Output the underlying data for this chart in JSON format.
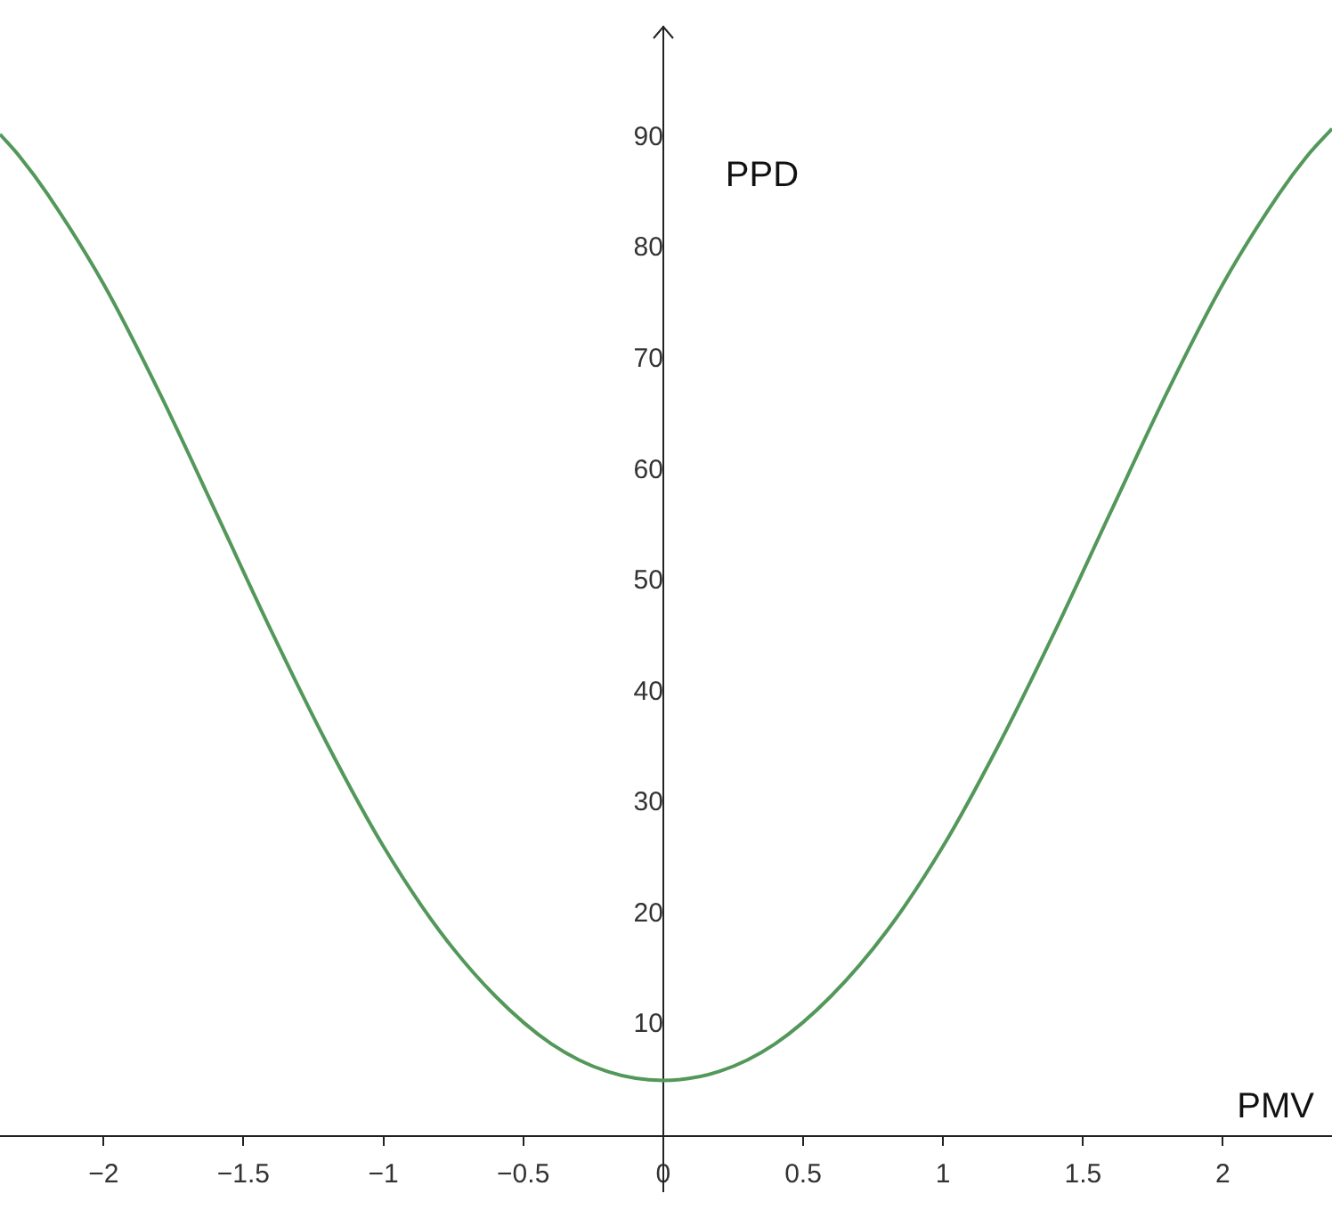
{
  "chart_data": {
    "type": "line",
    "xlabel": "PMV",
    "ylabel": "PPD",
    "x": [
      -2.37,
      -2.3,
      -2.2,
      -2.0,
      -1.8,
      -1.6,
      -1.4,
      -1.2,
      -1.0,
      -0.8,
      -0.6,
      -0.4,
      -0.2,
      0,
      0.2,
      0.4,
      0.6,
      0.8,
      1.0,
      1.2,
      1.4,
      1.6,
      1.8,
      2.0,
      2.2,
      2.3,
      2.39
    ],
    "series": [
      {
        "color": "#53985a",
        "values": [
          90.3,
          88.3,
          84.9,
          76.8,
          67.0,
          56.3,
          45.5,
          35.3,
          26.1,
          18.5,
          12.6,
          8.3,
          5.8,
          5.0,
          5.8,
          8.3,
          12.6,
          18.5,
          26.1,
          35.3,
          45.5,
          56.3,
          67.0,
          76.8,
          84.9,
          88.3,
          90.8
        ]
      }
    ],
    "xlim": [
      -2.37,
      2.39
    ],
    "ylim": [
      -5,
      100
    ],
    "xticks": [
      {
        "value": -2,
        "label": "−2"
      },
      {
        "value": -1.5,
        "label": "−1.5"
      },
      {
        "value": -1,
        "label": "−1"
      },
      {
        "value": -0.5,
        "label": "−0.5"
      },
      0,
      0.5,
      1,
      1.5,
      2
    ],
    "yticks": [
      10,
      20,
      30,
      40,
      50,
      60,
      70,
      80,
      90
    ],
    "grid": false,
    "legend": false,
    "marker": "none",
    "line_style": "solid"
  }
}
